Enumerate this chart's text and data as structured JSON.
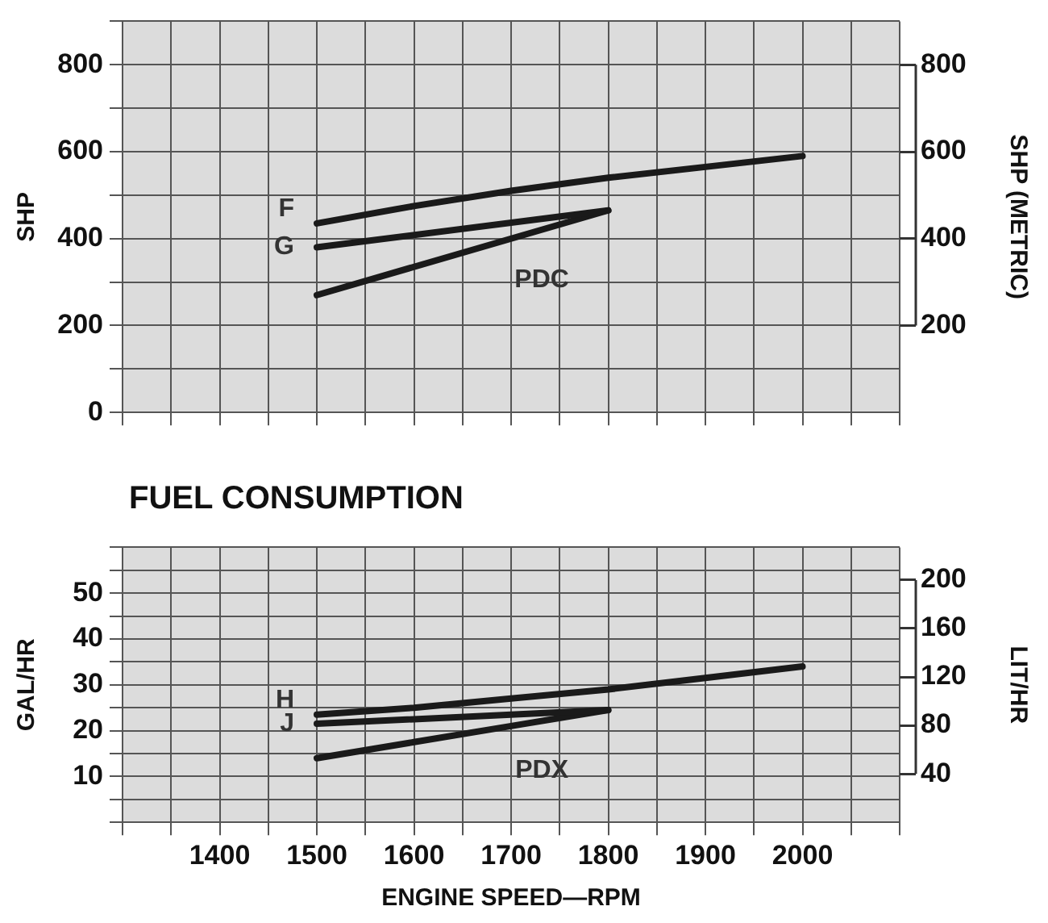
{
  "chart_data": [
    {
      "type": "line",
      "ylabel": "SHP",
      "y2label": "SHP (METRIC)",
      "tick_labels": "y",
      "grid": true,
      "legend": false,
      "marker": "none",
      "line_style": "solid",
      "xlim": [
        1300,
        2100
      ],
      "xticks": [
        {
          "value": 1300,
          "label": null
        },
        {
          "value": 1350,
          "label": null
        },
        {
          "value": 1400,
          "label": null
        },
        {
          "value": 1450,
          "label": null
        },
        {
          "value": 1500,
          "label": null
        },
        {
          "value": 1550,
          "label": null
        },
        {
          "value": 1600,
          "label": null
        },
        {
          "value": 1650,
          "label": null
        },
        {
          "value": 1700,
          "label": null
        },
        {
          "value": 1750,
          "label": null
        },
        {
          "value": 1800,
          "label": null
        },
        {
          "value": 1850,
          "label": null
        },
        {
          "value": 1900,
          "label": null
        },
        {
          "value": 1950,
          "label": null
        },
        {
          "value": 2000,
          "label": null
        },
        {
          "value": 2050,
          "label": null
        },
        {
          "value": 2100,
          "label": null
        }
      ],
      "ylim": [
        0,
        900
      ],
      "yticks": [
        0,
        {
          "value": 100,
          "label": null
        },
        200,
        {
          "value": 300,
          "label": null
        },
        400,
        {
          "value": 500,
          "label": null
        },
        600,
        {
          "value": 700,
          "label": null
        },
        800,
        {
          "value": 900,
          "label": null
        }
      ],
      "y2lim": [
        0,
        900
      ],
      "y2ticks": [
        200,
        400,
        600,
        800
      ],
      "series": [
        {
          "name": "F",
          "color": "#1a1a1a",
          "x": [
            1500,
            1600,
            1700,
            1800,
            1900,
            2000
          ],
          "values": [
            435,
            475,
            510,
            540,
            565,
            590
          ]
        },
        {
          "name": "G",
          "color": "#1a1a1a",
          "x": [
            1500,
            1800
          ],
          "values": [
            380,
            465
          ]
        },
        {
          "name": "PDC",
          "color": "#1a1a1a",
          "x": [
            1500,
            1800
          ],
          "values": [
            270,
            465
          ]
        }
      ]
    },
    {
      "type": "line",
      "title": "FUEL CONSUMPTION",
      "xlabel": "ENGINE SPEED—RPM",
      "ylabel": "GAL/HR",
      "y2label": "LIT/HR",
      "grid": true,
      "legend": false,
      "marker": "none",
      "line_style": "solid",
      "xlim": [
        1300,
        2100
      ],
      "xticks": [
        {
          "value": 1300,
          "label": null
        },
        {
          "value": 1350,
          "label": null
        },
        1400,
        {
          "value": 1450,
          "label": null
        },
        1500,
        {
          "value": 1550,
          "label": null
        },
        1600,
        {
          "value": 1650,
          "label": null
        },
        1700,
        {
          "value": 1750,
          "label": null
        },
        1800,
        {
          "value": 1850,
          "label": null
        },
        1900,
        {
          "value": 1950,
          "label": null
        },
        2000,
        {
          "value": 2050,
          "label": null
        },
        {
          "value": 2100,
          "label": null
        }
      ],
      "ylim": [
        0,
        60
      ],
      "yticks": [
        {
          "value": 0,
          "label": null
        },
        {
          "value": 5,
          "label": null
        },
        10,
        {
          "value": 15,
          "label": null
        },
        20,
        {
          "value": 25,
          "label": null
        },
        30,
        {
          "value": 35,
          "label": null
        },
        40,
        {
          "value": 45,
          "label": null
        },
        50,
        {
          "value": 55,
          "label": null
        },
        {
          "value": 60,
          "label": null
        }
      ],
      "y2lim": [
        0,
        227
      ],
      "y2ticks": [
        40,
        80,
        120,
        160,
        200
      ],
      "series": [
        {
          "name": "H",
          "color": "#1a1a1a",
          "x": [
            1500,
            1600,
            1700,
            1800,
            1900,
            2000
          ],
          "values": [
            23.5,
            25,
            27,
            29,
            31.5,
            34
          ]
        },
        {
          "name": "J",
          "color": "#1a1a1a",
          "x": [
            1500,
            1800
          ],
          "values": [
            21.5,
            24.5
          ]
        },
        {
          "name": "PDX",
          "color": "#1a1a1a",
          "x": [
            1500,
            1600,
            1700,
            1800
          ],
          "values": [
            14,
            17.5,
            21,
            24.5
          ]
        }
      ]
    }
  ]
}
